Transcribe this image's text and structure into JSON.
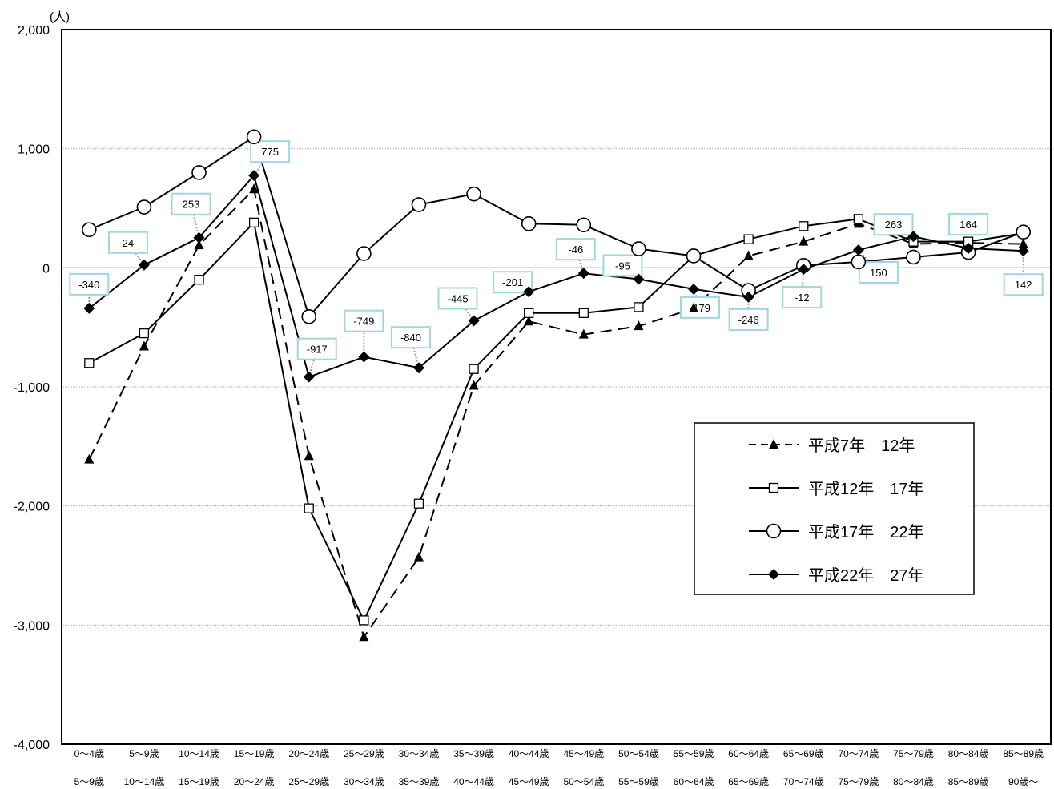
{
  "chart_data": {
    "type": "line",
    "unit_label": "(人)",
    "ylim": [
      -4000,
      2000
    ],
    "yticks": [
      2000,
      1000,
      0,
      -1000,
      -2000,
      -3000,
      -4000
    ],
    "ytick_labels": [
      "2,000",
      "1,000",
      "0",
      "-1,000",
      "-2,000",
      "-3,000",
      "-4,000"
    ],
    "grid": true,
    "legend_position": "bottom-right",
    "categories_from": [
      "0～4歳",
      "5～9歳",
      "10～14歳",
      "15～19歳",
      "20～24歳",
      "25～29歳",
      "30～34歳",
      "35～39歳",
      "40～44歳",
      "45～49歳",
      "50～54歳",
      "55～59歳",
      "60～64歳",
      "65～69歳",
      "70～74歳",
      "75～79歳",
      "80～84歳",
      "85～89歳"
    ],
    "categories_to": [
      "5～9歳",
      "10～14歳",
      "15～19歳",
      "20～24歳",
      "25～29歳",
      "30～34歳",
      "35～39歳",
      "40～44歳",
      "45～49歳",
      "50～54歳",
      "55～59歳",
      "60～64歳",
      "65～69歳",
      "70～74歳",
      "75～79歳",
      "80～84歳",
      "85～89歳",
      "90歳～"
    ],
    "series": [
      {
        "name": "平成7年　12年",
        "marker": "triangle",
        "dash": true,
        "values": [
          -1610,
          -660,
          190,
          660,
          -1580,
          -3100,
          -2430,
          -990,
          -450,
          -560,
          -490,
          -340,
          100,
          220,
          370,
          200,
          210,
          200
        ]
      },
      {
        "name": "平成12年　17年",
        "marker": "square",
        "dash": false,
        "values": [
          -800,
          -550,
          -100,
          380,
          -2020,
          -2960,
          -1980,
          -850,
          -380,
          -380,
          -330,
          100,
          240,
          350,
          410,
          220,
          220,
          290
        ]
      },
      {
        "name": "平成17年　22年",
        "marker": "circle",
        "dash": false,
        "values": [
          320,
          510,
          800,
          1100,
          -410,
          120,
          530,
          620,
          370,
          360,
          160,
          100,
          -190,
          20,
          50,
          90,
          130,
          300
        ]
      },
      {
        "name": "平成22年　27年",
        "marker": "diamond",
        "dash": false,
        "values": [
          -340,
          24,
          253,
          775,
          -917,
          -749,
          -840,
          -445,
          -201,
          -46,
          -95,
          -179,
          -246,
          -12,
          150,
          263,
          164,
          142
        ]
      }
    ],
    "data_labels": [
      "-340",
      "24",
      "253",
      "775",
      "-917",
      "-749",
      "-840",
      "-445",
      "-201",
      "-46",
      "-95",
      "-179",
      "-246",
      "-12",
      "150",
      "263",
      "164",
      "142"
    ]
  }
}
